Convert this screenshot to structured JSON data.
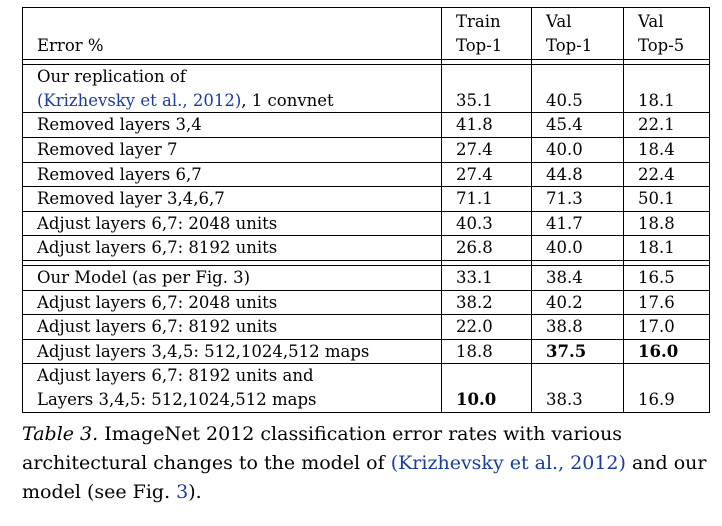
{
  "table": {
    "header": {
      "label": "Error %",
      "cols": [
        {
          "line1": "Train",
          "line2": "Top-1"
        },
        {
          "line1": "Val",
          "line2": "Top-1"
        },
        {
          "line1": "Val",
          "line2": "Top-5"
        }
      ]
    },
    "group1": [
      {
        "label_line1": "Our replication of",
        "label_cite": "(Krizhevsky et al., 2012)",
        "label_rest": ", 1 convnet",
        "train": "35.1",
        "val1": "40.5",
        "val5": "18.1"
      },
      {
        "label": "Removed layers 3,4",
        "train": "41.8",
        "val1": "45.4",
        "val5": "22.1"
      },
      {
        "label": "Removed layer 7",
        "train": "27.4",
        "val1": "40.0",
        "val5": "18.4"
      },
      {
        "label": "Removed layers 6,7",
        "train": "27.4",
        "val1": "44.8",
        "val5": "22.4"
      },
      {
        "label": "Removed layer 3,4,6,7",
        "train": "71.1",
        "val1": "71.3",
        "val5": "50.1"
      },
      {
        "label": "Adjust layers 6,7: 2048 units",
        "train": "40.3",
        "val1": "41.7",
        "val5": "18.8"
      },
      {
        "label": "Adjust layers 6,7: 8192 units",
        "train": "26.8",
        "val1": "40.0",
        "val5": "18.1"
      }
    ],
    "group2": [
      {
        "label": "Our Model (as per Fig. 3)",
        "train": "33.1",
        "val1": "38.4",
        "val5": "16.5"
      },
      {
        "label": "Adjust layers 6,7: 2048 units",
        "train": "38.2",
        "val1": "40.2",
        "val5": "17.6"
      },
      {
        "label": "Adjust layers 6,7: 8192 units",
        "train": "22.0",
        "val1": "38.8",
        "val5": "17.0"
      },
      {
        "label": "Adjust layers 3,4,5: 512,1024,512 maps",
        "train": "18.8",
        "val1": "37.5",
        "val5": "16.0"
      },
      {
        "label_line1": "Adjust layers 6,7: 8192 units and",
        "label_line2": "Layers 3,4,5: 512,1024,512 maps",
        "train": "10.0",
        "val1": "38.3",
        "val5": "16.9"
      }
    ]
  },
  "caption": {
    "label": "Table 3.",
    "text1": " ImageNet 2012 classification error rates with various architectural changes to the model of ",
    "cite": "(Krizhevsky et al., 2012)",
    "text2": " and our model (see Fig. ",
    "fig_ref": "3",
    "text3": ")."
  },
  "colors": {
    "citation": "#1a3c9c",
    "text": "#000000"
  }
}
